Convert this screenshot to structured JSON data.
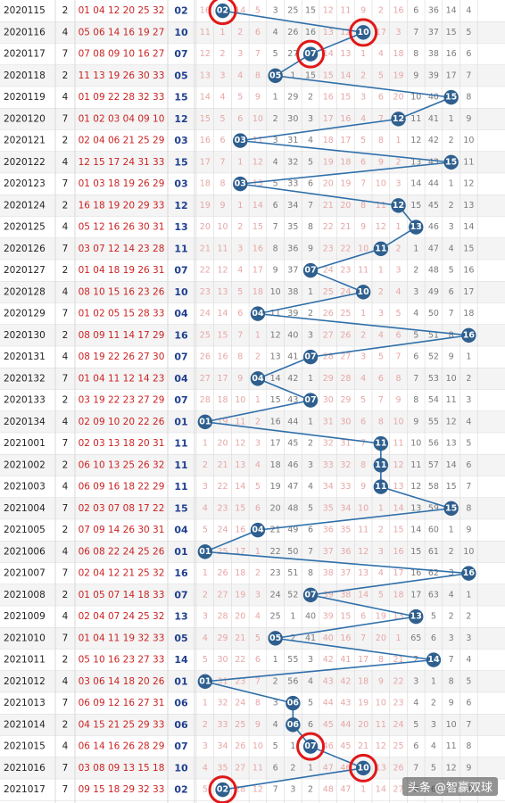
{
  "chart_data": {
    "type": "table",
    "kind": "blue-ball trend chart",
    "x_numbers": [
      1,
      2,
      3,
      4,
      5,
      6,
      7,
      8,
      9,
      10,
      11,
      12,
      13,
      14,
      15,
      16
    ],
    "highlighted_rows": [
      "2020115",
      "2020116",
      "2020117",
      "2021015",
      "2021016",
      "2021017"
    ],
    "rows": [
      {
        "issue": "2020115",
        "c1": "2",
        "reds": "01 04 12 20 25 32",
        "blue": "02",
        "trend": [
          "16",
          "02",
          "14",
          "5",
          "3",
          "25",
          "15",
          "12",
          "11",
          "9",
          "2",
          "16",
          "6",
          "36",
          "14",
          "4"
        ]
      },
      {
        "issue": "2020116",
        "c1": "4",
        "reds": "05 06 14 16 19 27",
        "blue": "10",
        "trend": [
          "11",
          "1",
          "2",
          "6",
          "4",
          "26",
          "16",
          "13",
          "12",
          "10",
          "17",
          "3",
          "7",
          "37",
          "15",
          "5"
        ]
      },
      {
        "issue": "2020117",
        "c1": "7",
        "reds": "07 08 09 10 16 27",
        "blue": "07",
        "trend": [
          "12",
          "2",
          "3",
          "7",
          "5",
          "27",
          "07",
          "14",
          "13",
          "1",
          "4",
          "18",
          "8",
          "38",
          "16",
          "6"
        ]
      },
      {
        "issue": "2020118",
        "c1": "2",
        "reds": "11 13 19 26 30 33",
        "blue": "05",
        "trend": [
          "13",
          "3",
          "4",
          "8",
          "05",
          "1",
          "15",
          "15",
          "14",
          "2",
          "5",
          "19",
          "9",
          "39",
          "17",
          "7"
        ]
      },
      {
        "issue": "2020119",
        "c1": "4",
        "reds": "01 09 22 28 32 33",
        "blue": "15",
        "trend": [
          "14",
          "4",
          "5",
          "9",
          "1",
          "29",
          "2",
          "16",
          "15",
          "3",
          "6",
          "20",
          "10",
          "40",
          "15",
          "8"
        ]
      },
      {
        "issue": "2020120",
        "c1": "7",
        "reds": "01 02 03 04 09 10",
        "blue": "12",
        "trend": [
          "15",
          "5",
          "6",
          "10",
          "2",
          "30",
          "3",
          "17",
          "16",
          "4",
          "7",
          "12",
          "11",
          "41",
          "1",
          "9"
        ]
      },
      {
        "issue": "2020121",
        "c1": "2",
        "reds": "02 04 06 21 25 29",
        "blue": "03",
        "trend": [
          "16",
          "6",
          "03",
          "11",
          "3",
          "31",
          "4",
          "18",
          "17",
          "5",
          "8",
          "1",
          "12",
          "42",
          "2",
          "10"
        ]
      },
      {
        "issue": "2020122",
        "c1": "4",
        "reds": "12 15 17 24 31 33",
        "blue": "15",
        "trend": [
          "17",
          "7",
          "1",
          "12",
          "4",
          "32",
          "5",
          "19",
          "18",
          "6",
          "9",
          "2",
          "13",
          "43",
          "15",
          "11"
        ]
      },
      {
        "issue": "2020123",
        "c1": "7",
        "reds": "01 03 18 19 26 29",
        "blue": "03",
        "trend": [
          "18",
          "8",
          "03",
          "13",
          "5",
          "33",
          "6",
          "20",
          "19",
          "7",
          "10",
          "3",
          "14",
          "44",
          "1",
          "12"
        ]
      },
      {
        "issue": "2020124",
        "c1": "2",
        "reds": "16 18 19 20 29 33",
        "blue": "12",
        "trend": [
          "19",
          "9",
          "1",
          "14",
          "6",
          "34",
          "7",
          "21",
          "20",
          "8",
          "11",
          "12",
          "15",
          "45",
          "2",
          "13"
        ]
      },
      {
        "issue": "2020125",
        "c1": "4",
        "reds": "05 12 16 26 30 31",
        "blue": "13",
        "trend": [
          "20",
          "10",
          "2",
          "15",
          "7",
          "35",
          "8",
          "22",
          "21",
          "9",
          "12",
          "1",
          "13",
          "46",
          "3",
          "14"
        ]
      },
      {
        "issue": "2020126",
        "c1": "7",
        "reds": "03 07 12 14 23 28",
        "blue": "11",
        "trend": [
          "21",
          "11",
          "3",
          "16",
          "8",
          "36",
          "9",
          "23",
          "22",
          "10",
          "11",
          "2",
          "1",
          "47",
          "4",
          "15"
        ]
      },
      {
        "issue": "2020127",
        "c1": "2",
        "reds": "01 04 18 19 26 31",
        "blue": "07",
        "trend": [
          "22",
          "12",
          "4",
          "17",
          "9",
          "37",
          "07",
          "24",
          "23",
          "11",
          "1",
          "3",
          "2",
          "48",
          "5",
          "16"
        ]
      },
      {
        "issue": "2020128",
        "c1": "4",
        "reds": "08 10 15 16 23 26",
        "blue": "10",
        "trend": [
          "23",
          "13",
          "5",
          "18",
          "10",
          "38",
          "1",
          "25",
          "24",
          "10",
          "2",
          "4",
          "3",
          "49",
          "6",
          "17"
        ]
      },
      {
        "issue": "2020129",
        "c1": "7",
        "reds": "01 02 05 15 28 33",
        "blue": "04",
        "trend": [
          "24",
          "14",
          "6",
          "04",
          "11",
          "39",
          "2",
          "26",
          "25",
          "1",
          "3",
          "5",
          "4",
          "50",
          "7",
          "18"
        ]
      },
      {
        "issue": "2020130",
        "c1": "2",
        "reds": "08 09 11 14 17 29",
        "blue": "16",
        "trend": [
          "25",
          "15",
          "7",
          "1",
          "12",
          "40",
          "3",
          "27",
          "26",
          "2",
          "4",
          "6",
          "5",
          "51",
          "8",
          "16"
        ]
      },
      {
        "issue": "2020131",
        "c1": "4",
        "reds": "08 19 22 26 27 30",
        "blue": "07",
        "trend": [
          "26",
          "16",
          "8",
          "2",
          "13",
          "41",
          "07",
          "28",
          "27",
          "3",
          "5",
          "7",
          "6",
          "52",
          "9",
          "1"
        ]
      },
      {
        "issue": "2020132",
        "c1": "7",
        "reds": "01 04 11 12 14 23",
        "blue": "04",
        "trend": [
          "27",
          "17",
          "9",
          "04",
          "14",
          "42",
          "1",
          "29",
          "28",
          "4",
          "6",
          "8",
          "7",
          "53",
          "10",
          "2"
        ]
      },
      {
        "issue": "2020133",
        "c1": "2",
        "reds": "03 19 22 23 27 29",
        "blue": "07",
        "trend": [
          "28",
          "18",
          "10",
          "1",
          "15",
          "43",
          "07",
          "30",
          "29",
          "5",
          "7",
          "9",
          "8",
          "54",
          "11",
          "3"
        ]
      },
      {
        "issue": "2020134",
        "c1": "4",
        "reds": "02 09 10 20 22 26",
        "blue": "01",
        "trend": [
          "01",
          "19",
          "11",
          "2",
          "16",
          "44",
          "1",
          "31",
          "30",
          "6",
          "8",
          "10",
          "9",
          "55",
          "12",
          "4"
        ]
      },
      {
        "issue": "2021001",
        "c1": "7",
        "reds": "02 03 13 18 20 31",
        "blue": "11",
        "trend": [
          "1",
          "20",
          "12",
          "3",
          "17",
          "45",
          "2",
          "32",
          "31",
          "7",
          "11",
          "11",
          "10",
          "56",
          "13",
          "5"
        ]
      },
      {
        "issue": "2021002",
        "c1": "2",
        "reds": "06 10 13 25 26 32",
        "blue": "11",
        "trend": [
          "2",
          "21",
          "13",
          "4",
          "18",
          "46",
          "3",
          "33",
          "32",
          "8",
          "11",
          "12",
          "11",
          "57",
          "14",
          "6"
        ]
      },
      {
        "issue": "2021003",
        "c1": "4",
        "reds": "06 09 16 18 22 29",
        "blue": "11",
        "trend": [
          "3",
          "22",
          "14",
          "5",
          "19",
          "47",
          "4",
          "34",
          "33",
          "9",
          "11",
          "13",
          "12",
          "58",
          "15",
          "7"
        ]
      },
      {
        "issue": "2021004",
        "c1": "7",
        "reds": "02 03 07 08 17 22",
        "blue": "15",
        "trend": [
          "4",
          "23",
          "15",
          "6",
          "20",
          "48",
          "5",
          "35",
          "34",
          "10",
          "1",
          "14",
          "13",
          "59",
          "15",
          "8"
        ]
      },
      {
        "issue": "2021005",
        "c1": "2",
        "reds": "07 09 14 26 30 31",
        "blue": "04",
        "trend": [
          "5",
          "24",
          "16",
          "04",
          "21",
          "49",
          "6",
          "36",
          "35",
          "11",
          "2",
          "15",
          "14",
          "60",
          "1",
          "9"
        ]
      },
      {
        "issue": "2021006",
        "c1": "4",
        "reds": "06 08 22 24 25 26",
        "blue": "01",
        "trend": [
          "01",
          "25",
          "17",
          "1",
          "22",
          "50",
          "7",
          "37",
          "36",
          "12",
          "3",
          "16",
          "15",
          "61",
          "2",
          "10"
        ]
      },
      {
        "issue": "2021007",
        "c1": "7",
        "reds": "02 04 12 21 25 32",
        "blue": "16",
        "trend": [
          "1",
          "26",
          "18",
          "2",
          "23",
          "51",
          "8",
          "38",
          "37",
          "13",
          "4",
          "17",
          "16",
          "62",
          "3",
          "16"
        ]
      },
      {
        "issue": "2021008",
        "c1": "2",
        "reds": "01 05 07 14 18 33",
        "blue": "07",
        "trend": [
          "2",
          "27",
          "19",
          "3",
          "24",
          "52",
          "07",
          "39",
          "38",
          "14",
          "5",
          "18",
          "17",
          "63",
          "4",
          "1"
        ]
      },
      {
        "issue": "2021009",
        "c1": "4",
        "reds": "02 04 07 24 25 32",
        "blue": "13",
        "trend": [
          "3",
          "28",
          "20",
          "4",
          "25",
          "1",
          "40",
          "39",
          "15",
          "6",
          "19",
          "13",
          "64",
          "5",
          "2",
          "2"
        ]
      },
      {
        "issue": "2021010",
        "c1": "7",
        "reds": "01 04 11 19 32 33",
        "blue": "05",
        "trend": [
          "4",
          "29",
          "21",
          "5",
          "05",
          "2",
          "41",
          "40",
          "16",
          "7",
          "20",
          "1",
          "65",
          "6",
          "3",
          "3"
        ]
      },
      {
        "issue": "2021011",
        "c1": "2",
        "reds": "05 10 16 23 27 33",
        "blue": "14",
        "trend": [
          "5",
          "30",
          "22",
          "6",
          "1",
          "55",
          "3",
          "42",
          "41",
          "17",
          "8",
          "21",
          "2",
          "14",
          "7",
          "4"
        ]
      },
      {
        "issue": "2021012",
        "c1": "4",
        "reds": "03 06 14 18 20 26",
        "blue": "01",
        "trend": [
          "01",
          "31",
          "23",
          "7",
          "2",
          "56",
          "4",
          "43",
          "42",
          "18",
          "9",
          "22",
          "3",
          "1",
          "8",
          "5"
        ]
      },
      {
        "issue": "2021013",
        "c1": "7",
        "reds": "06 09 12 16 27 31",
        "blue": "06",
        "trend": [
          "1",
          "32",
          "24",
          "8",
          "3",
          "06",
          "5",
          "44",
          "43",
          "19",
          "10",
          "23",
          "4",
          "2",
          "9",
          "6"
        ]
      },
      {
        "issue": "2021014",
        "c1": "2",
        "reds": "04 15 21 25 29 33",
        "blue": "06",
        "trend": [
          "2",
          "33",
          "25",
          "9",
          "4",
          "06",
          "6",
          "45",
          "44",
          "20",
          "11",
          "24",
          "5",
          "3",
          "10",
          "7"
        ]
      },
      {
        "issue": "2021015",
        "c1": "4",
        "reds": "06 14 16 26 28 29",
        "blue": "07",
        "trend": [
          "3",
          "34",
          "26",
          "10",
          "5",
          "1",
          "07",
          "46",
          "45",
          "21",
          "12",
          "25",
          "6",
          "4",
          "11",
          "8"
        ]
      },
      {
        "issue": "2021016",
        "c1": "7",
        "reds": "03 08 09 13 15 18",
        "blue": "10",
        "trend": [
          "4",
          "35",
          "27",
          "11",
          "6",
          "2",
          "1",
          "47",
          "46",
          "10",
          "13",
          "26",
          "7",
          "5",
          "12",
          "9"
        ]
      },
      {
        "issue": "2021017",
        "c1": "7",
        "reds": "09 15 18 29 32 33",
        "blue": "02",
        "trend": [
          "5",
          "02",
          "28",
          "12",
          "7",
          "3",
          "2",
          "48",
          "47",
          "1",
          "14",
          "27",
          "8",
          "6",
          "13",
          "10"
        ]
      }
    ]
  },
  "watermark": "头条 @智赢双球",
  "colors": {
    "issue_text": "#222222",
    "reds_text": "#cc2222",
    "blue_text": "#1f3f8f",
    "miss_pink": "#e7a6a6",
    "miss_gray": "#7a7a7a",
    "ball": "#2e5f8e",
    "line": "#2f6faa",
    "highlight": "#e01818",
    "row_odd": "#ffffff",
    "row_even": "#f4f4f4",
    "grid": "#d9d9d9"
  }
}
